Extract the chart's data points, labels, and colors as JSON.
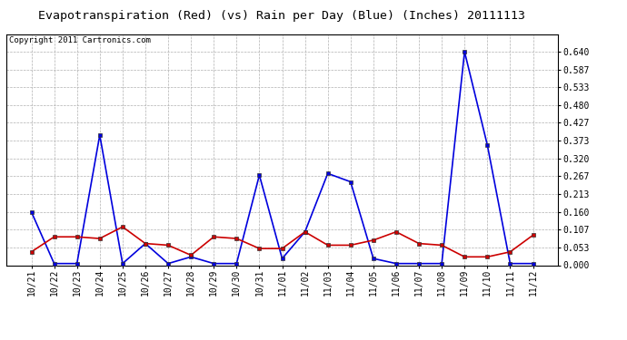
{
  "title": "Evapotranspiration (Red) (vs) Rain per Day (Blue) (Inches) 20111113",
  "copyright": "Copyright 2011 Cartronics.com",
  "x_labels": [
    "10/21",
    "10/22",
    "10/23",
    "10/24",
    "10/25",
    "10/26",
    "10/27",
    "10/28",
    "10/29",
    "10/30",
    "10/31",
    "11/01",
    "11/02",
    "11/03",
    "11/04",
    "11/05",
    "11/06",
    "11/07",
    "11/08",
    "11/09",
    "11/10",
    "11/11",
    "11/12"
  ],
  "blue_rain": [
    0.16,
    0.005,
    0.005,
    0.39,
    0.005,
    0.065,
    0.005,
    0.025,
    0.005,
    0.005,
    0.27,
    0.02,
    0.1,
    0.275,
    0.25,
    0.02,
    0.005,
    0.005,
    0.005,
    0.64,
    0.36,
    0.005,
    0.005
  ],
  "red_et": [
    0.04,
    0.085,
    0.085,
    0.08,
    0.115,
    0.065,
    0.06,
    0.03,
    0.085,
    0.08,
    0.05,
    0.05,
    0.1,
    0.06,
    0.06,
    0.075,
    0.1,
    0.065,
    0.06,
    0.025,
    0.025,
    0.04,
    0.09
  ],
  "ylim": [
    0,
    0.693
  ],
  "yticks": [
    0.0,
    0.053,
    0.107,
    0.16,
    0.213,
    0.267,
    0.32,
    0.373,
    0.427,
    0.48,
    0.533,
    0.587,
    0.64
  ],
  "bg_color": "#ffffff",
  "plot_bg": "#ffffff",
  "grid_color": "#b0b0b0",
  "blue_color": "#0000dd",
  "red_color": "#cc0000",
  "title_fontsize": 9.5,
  "copyright_fontsize": 6.5,
  "tick_fontsize": 7.0
}
